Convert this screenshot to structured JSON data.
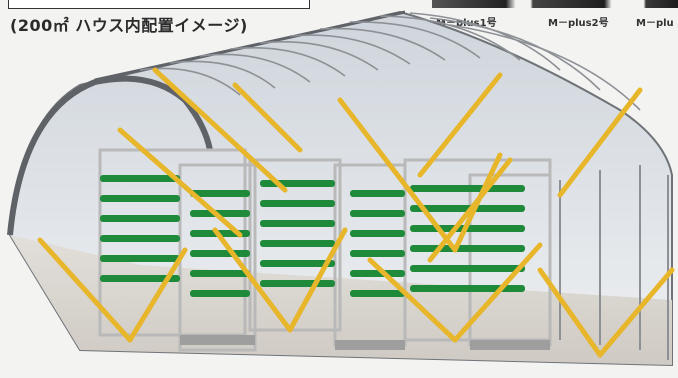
{
  "caption": "(200㎡ ハウス内配置イメージ)",
  "models": [
    {
      "label": "M－plus1号"
    },
    {
      "label": "M－plus2号"
    },
    {
      "label": "M－plu"
    }
  ],
  "colors": {
    "greenhouse_frame": "#7a7d82",
    "greenhouse_film": "#d9dde2",
    "crop_green": "#1f8a3a",
    "rack_gray": "#c9c9c9",
    "overlay_line": "#e8b62a"
  }
}
